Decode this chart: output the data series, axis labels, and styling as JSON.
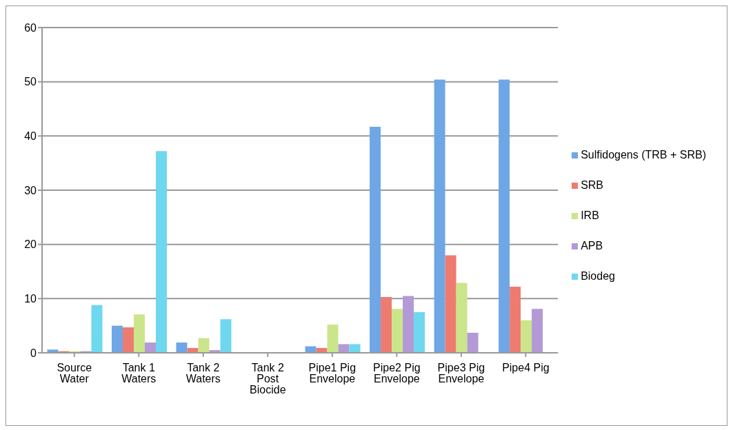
{
  "chart_data": {
    "type": "bar",
    "categories": [
      "Source Water",
      "Tank 1 Waters",
      "Tank 2 Waters",
      "Tank 2 Post Biocide",
      "Pipe1 Pig Envelope",
      "Pipe2 Pig Envelope",
      "Pipe3 Pig Envelope",
      "Pipe4 Pig"
    ],
    "series": [
      {
        "name": "Sulfidogens (TRB + SRB)",
        "color": "#6fa6e6",
        "values": [
          0.6,
          5.0,
          1.9,
          0,
          1.2,
          41.7,
          50.4,
          50.4
        ]
      },
      {
        "name": "SRB",
        "color": "#ee7b70",
        "values": [
          0.3,
          4.7,
          0.9,
          0,
          0.9,
          10.3,
          18.0,
          12.2
        ]
      },
      {
        "name": "IRB",
        "color": "#cbe58a",
        "values": [
          0.3,
          7.1,
          2.7,
          0,
          5.2,
          8.1,
          12.9,
          6.0
        ]
      },
      {
        "name": "APB",
        "color": "#b39ad6",
        "values": [
          0.3,
          1.9,
          0.5,
          0,
          1.6,
          10.5,
          3.7,
          8.1
        ]
      },
      {
        "name": "Biodeg",
        "color": "#6ed8ee",
        "values": [
          8.8,
          37.2,
          6.2,
          0,
          1.6,
          7.5,
          0,
          0
        ]
      }
    ],
    "ylim": [
      0,
      60
    ],
    "yticks": [
      0,
      10,
      20,
      30,
      40,
      50,
      60
    ],
    "grid": "y",
    "legend": "right"
  }
}
